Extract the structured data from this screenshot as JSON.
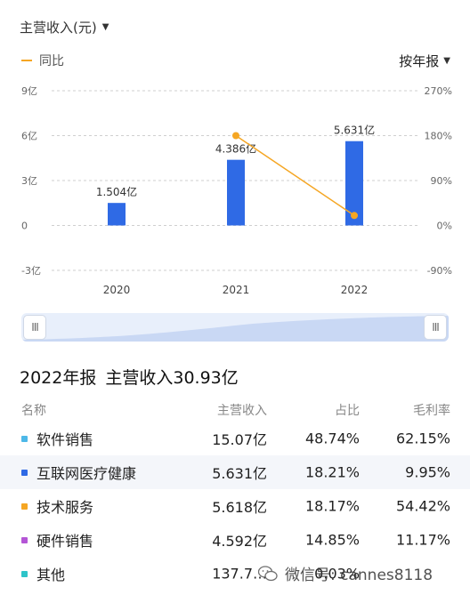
{
  "header": {
    "title": "主营收入(元)",
    "caret": "▼"
  },
  "legend": {
    "yoy_label": "同比"
  },
  "period_selector": {
    "label": "按年报",
    "caret": "▼"
  },
  "colors": {
    "bar": "#2f6ae5",
    "line": "#f5a623",
    "grid": "#cfcfcf"
  },
  "chart_data": {
    "type": "bar",
    "categories": [
      "2020",
      "2021",
      "2022"
    ],
    "series": [
      {
        "name": "主营收入",
        "kind": "bar",
        "axis": "left",
        "values": [
          1.504,
          4.386,
          5.631
        ],
        "labels": [
          "1.504亿",
          "4.386亿",
          "5.631亿"
        ]
      },
      {
        "name": "同比",
        "kind": "line",
        "axis": "right",
        "values": [
          null,
          180,
          20
        ]
      }
    ],
    "left_axis": {
      "min": -3,
      "max": 9,
      "ticks": [
        9,
        6,
        3,
        0,
        -3
      ],
      "tick_labels": [
        "9亿",
        "6亿",
        "3亿",
        "0",
        "-3亿"
      ]
    },
    "right_axis": {
      "min": -90,
      "max": 270,
      "ticks": [
        270,
        180,
        90,
        0,
        -90
      ],
      "tick_labels": [
        "270%",
        "180%",
        "90%",
        "0%",
        "-90%"
      ]
    },
    "grid": true
  },
  "slider": {
    "left_handle": "III",
    "right_handle": "III"
  },
  "summary": {
    "period": "2022年报",
    "text": "主营收入30.93亿"
  },
  "table": {
    "headers": {
      "name": "名称",
      "revenue": "主营收入",
      "share": "占比",
      "margin": "毛利率"
    },
    "rows": [
      {
        "name": "软件销售",
        "revenue": "15.07亿",
        "share": "48.74%",
        "margin": "62.15%",
        "color": "#4db8e8"
      },
      {
        "name": "互联网医疗健康",
        "revenue": "5.631亿",
        "share": "18.21%",
        "margin": "9.95%",
        "color": "#2f6ae5"
      },
      {
        "name": "技术服务",
        "revenue": "5.618亿",
        "share": "18.17%",
        "margin": "54.42%",
        "color": "#f5a623"
      },
      {
        "name": "硬件销售",
        "revenue": "4.592亿",
        "share": "14.85%",
        "margin": "11.17%",
        "color": "#b455d6"
      },
      {
        "name": "其他",
        "revenue": "137.7…",
        "share": "0.03%",
        "margin": "",
        "color": "#2ec4c9"
      }
    ]
  },
  "watermark": {
    "text": "微信号: cannes8118"
  }
}
